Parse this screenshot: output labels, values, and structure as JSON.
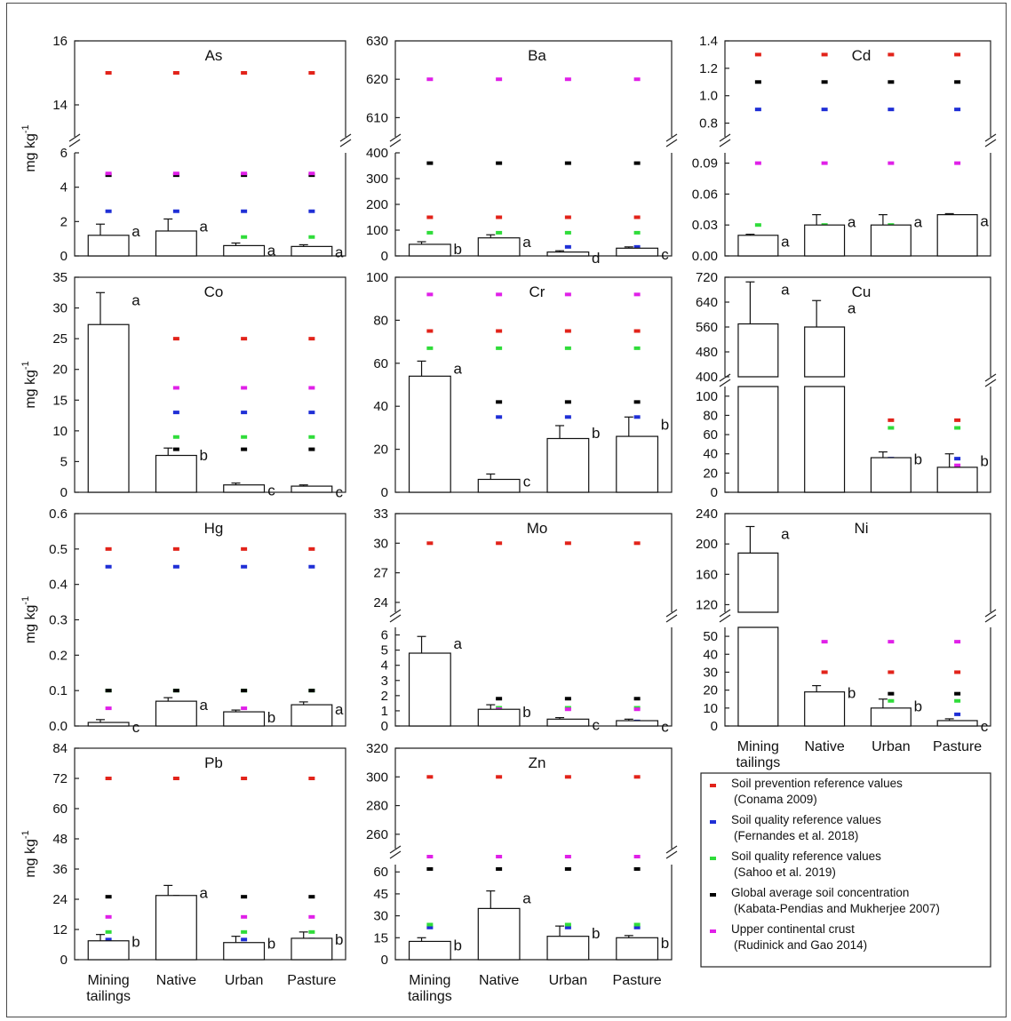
{
  "colors": {
    "Conama": "#e2231a",
    "Fernandes": "#1f2fd6",
    "Sahoo": "#2fdc3a",
    "Kabata": "#000000",
    "Rudinick": "#e020e8"
  },
  "y_axis_label": "mg kg",
  "y_axis_label_sup": "-1",
  "categories": [
    "Mining tailings",
    "Native",
    "Urban",
    "Pasture"
  ],
  "category_lines": [
    [
      "Mining",
      "tailings"
    ],
    [
      "Native"
    ],
    [
      "Urban"
    ],
    [
      "Pasture"
    ]
  ],
  "legend": [
    {
      "key": "Conama",
      "line1": "Soil prevention reference values",
      "line2": "(Conama 2009)"
    },
    {
      "key": "Fernandes",
      "line1": "Soil quality reference values",
      "line2": "(Fernandes et al. 2018)"
    },
    {
      "key": "Sahoo",
      "line1": "Soil quality reference values",
      "line2": "(Sahoo et al. 2019)"
    },
    {
      "key": "Kabata",
      "line1": "Global average soil concentration",
      "line2": "(Kabata-Pendias and Mukherjee 2007)"
    },
    {
      "key": "Rudinick",
      "line1": "Upper continental crust",
      "line2": " (Rudinick and Gao 2014)"
    }
  ],
  "chart_data": [
    {
      "type": "bar",
      "title": "As",
      "categories": [
        "Mining tailings",
        "Native",
        "Urban",
        "Pasture"
      ],
      "values": [
        1.2,
        1.45,
        0.6,
        0.55
      ],
      "errors": [
        0.65,
        0.7,
        0.15,
        0.1
      ],
      "letters": [
        "a",
        "a",
        "a",
        "a"
      ],
      "yticks_lower": [
        "0",
        "2",
        "4",
        "6"
      ],
      "yticks_upper": [
        "14",
        "16"
      ],
      "references": {
        "Conama": 15,
        "Fernandes": 2.6,
        "Sahoo": 1.1,
        "Kabata": 4.7,
        "Rudinick": 4.8
      }
    },
    {
      "type": "bar",
      "title": "Ba",
      "categories": [
        "Mining tailings",
        "Native",
        "Urban",
        "Pasture"
      ],
      "values": [
        45,
        70,
        15,
        30
      ],
      "errors": [
        10,
        12,
        5,
        5
      ],
      "letters": [
        "b",
        "a",
        "d",
        "c"
      ],
      "yticks_lower": [
        "0",
        "100",
        "200",
        "300",
        "400"
      ],
      "yticks_upper": [
        "610",
        "620",
        "630"
      ],
      "references": {
        "Conama": 150,
        "Fernandes": 35,
        "Sahoo": 90,
        "Kabata": 360,
        "Rudinick": 620
      }
    },
    {
      "type": "bar",
      "title": "Cd",
      "categories": [
        "Mining tailings",
        "Native",
        "Urban",
        "Pasture"
      ],
      "values": [
        0.02,
        0.03,
        0.03,
        0.04
      ],
      "errors": [
        0.001,
        0.01,
        0.01,
        0.001
      ],
      "letters": [
        "a",
        "a",
        "a",
        "a"
      ],
      "yticks_lower": [
        "0.00",
        "0.03",
        "0.06",
        "0.09"
      ],
      "yticks_upper": [
        "0.8",
        "1.0",
        "1.2",
        "1.4"
      ],
      "references": {
        "Conama": 1.3,
        "Fernandes": 0.9,
        "Sahoo": 0.03,
        "Kabata": 1.1,
        "Rudinick": 0.09
      }
    },
    {
      "type": "bar",
      "title": "Co",
      "categories": [
        "Mining tailings",
        "Native",
        "Urban",
        "Pasture"
      ],
      "values": [
        27.3,
        6,
        1.2,
        1
      ],
      "errors": [
        5.2,
        1.2,
        0.3,
        0.2
      ],
      "letters": [
        "a",
        "b",
        "c",
        "c"
      ],
      "yticks": [
        "0",
        "5",
        "10",
        "15",
        "20",
        "25",
        "30",
        "35"
      ],
      "references": {
        "Conama": 25,
        "Fernandes": 13,
        "Sahoo": 9,
        "Kabata": 7,
        "Rudinick": 17
      }
    },
    {
      "type": "bar",
      "title": "Cr",
      "categories": [
        "Mining tailings",
        "Native",
        "Urban",
        "Pasture"
      ],
      "values": [
        54,
        6,
        25,
        26
      ],
      "errors": [
        7,
        2.5,
        6,
        9
      ],
      "letters": [
        "a",
        "c",
        "b",
        "b"
      ],
      "yticks": [
        "0",
        "20",
        "40",
        "60",
        "80",
        "100"
      ],
      "references": {
        "Conama": 75,
        "Fernandes": 35,
        "Sahoo": 67,
        "Kabata": 42,
        "Rudinick": 92
      }
    },
    {
      "type": "bar",
      "title": "Cu",
      "categories": [
        "Mining tailings",
        "Native",
        "Urban",
        "Pasture"
      ],
      "values": [
        570,
        560,
        36,
        26
      ],
      "errors": [
        135,
        85,
        6,
        14
      ],
      "letters": [
        "a",
        "a",
        "b",
        "b"
      ],
      "yticks_lower": [
        "0",
        "20",
        "40",
        "60",
        "80",
        "100"
      ],
      "yticks_upper": [
        "400",
        "480",
        "560",
        "640",
        "720"
      ],
      "references": {
        "Conama": 75,
        "Fernandes": 35,
        "Sahoo": 67,
        "Kabata": 14,
        "Rudinick": 28
      }
    },
    {
      "type": "bar",
      "title": "Hg",
      "categories": [
        "Mining tailings",
        "Native",
        "Urban",
        "Pasture"
      ],
      "values": [
        0.01,
        0.07,
        0.04,
        0.06
      ],
      "errors": [
        0.008,
        0.01,
        0.005,
        0.008
      ],
      "letters": [
        "c",
        "a",
        "b",
        "a"
      ],
      "yticks": [
        "0.0",
        "0.1",
        "0.2",
        "0.3",
        "0.4",
        "0.5",
        "0.6"
      ],
      "references": {
        "Conama": 0.5,
        "Fernandes": 0.45,
        "Sahoo": 0.1,
        "Kabata": 0.1,
        "Rudinick": 0.05
      }
    },
    {
      "type": "bar",
      "title": "Mo",
      "categories": [
        "Mining tailings",
        "Native",
        "Urban",
        "Pasture"
      ],
      "values": [
        4.8,
        1.1,
        0.45,
        0.35
      ],
      "errors": [
        1.1,
        0.3,
        0.1,
        0.1
      ],
      "letters": [
        "a",
        "b",
        "c",
        "c"
      ],
      "yticks_lower": [
        "0",
        "1",
        "2",
        "3",
        "4",
        "5",
        "6"
      ],
      "yticks_upper": [
        "24",
        "27",
        "30",
        "33"
      ],
      "references": {
        "Conama": 30,
        "Fernandes": 0.3,
        "Sahoo": 1.2,
        "Kabata": 1.8,
        "Rudinick": 1.1
      }
    },
    {
      "type": "bar",
      "title": "Ni",
      "categories": [
        "Mining tailings",
        "Native",
        "Urban",
        "Pasture"
      ],
      "values": [
        188,
        19,
        10,
        3
      ],
      "errors": [
        35,
        3.5,
        5,
        1
      ],
      "letters": [
        "a",
        "b",
        "b",
        "c"
      ],
      "yticks_lower": [
        "0",
        "10",
        "20",
        "30",
        "40",
        "50"
      ],
      "yticks_upper": [
        "120",
        "160",
        "200",
        "240"
      ],
      "references": {
        "Conama": 30,
        "Fernandes": 6.5,
        "Sahoo": 14,
        "Kabata": 18,
        "Rudinick": 47
      }
    },
    {
      "type": "bar",
      "title": "Pb",
      "categories": [
        "Mining tailings",
        "Native",
        "Urban",
        "Pasture"
      ],
      "values": [
        7.5,
        25.5,
        6.8,
        8.5
      ],
      "errors": [
        2.5,
        4,
        2.5,
        2.5
      ],
      "letters": [
        "b",
        "a",
        "b",
        "b"
      ],
      "yticks": [
        "0",
        "12",
        "24",
        "36",
        "48",
        "60",
        "72",
        "84"
      ],
      "references": {
        "Conama": 72,
        "Fernandes": 8,
        "Sahoo": 11,
        "Kabata": 25,
        "Rudinick": 17
      }
    },
    {
      "type": "bar",
      "title": "Zn",
      "categories": [
        "Mining tailings",
        "Native",
        "Urban",
        "Pasture"
      ],
      "values": [
        12.5,
        35,
        16,
        15
      ],
      "errors": [
        2.5,
        12,
        7,
        1.5
      ],
      "letters": [
        "b",
        "a",
        "b",
        "b"
      ],
      "yticks_lower": [
        "0",
        "15",
        "30",
        "45",
        "60"
      ],
      "yticks_upper": [
        "260",
        "280",
        "300",
        "320"
      ],
      "references": {
        "Conama": 300,
        "Fernandes": 22,
        "Sahoo": 24,
        "Kabata": 62,
        "Rudinick": 67
      }
    }
  ]
}
